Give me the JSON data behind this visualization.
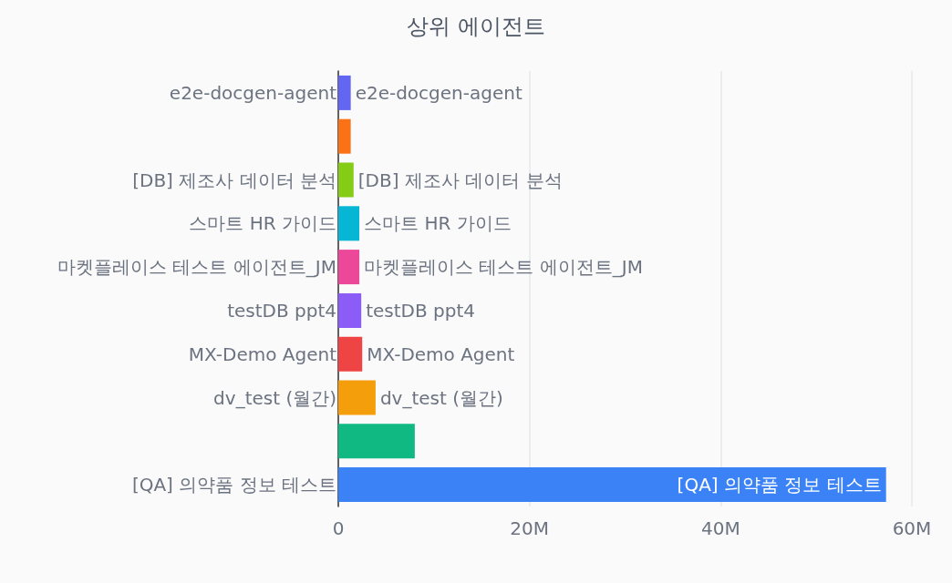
{
  "chart_data": {
    "type": "bar",
    "title": "상위 에이전트",
    "orientation": "horizontal",
    "categories": [
      "e2e-docgen-agent",
      null,
      "[DB] 제조사 데이터 분석",
      "스마트 HR 가이드",
      "마켓플레이스 테스트 에이전트_JM",
      "testDB ppt4",
      "MX-Demo Agent",
      "dv_test (월간)",
      null,
      "[QA] 의약품 정보 테스트"
    ],
    "values": [
      1.3,
      1.3,
      1.6,
      2.2,
      2.2,
      2.4,
      2.5,
      3.9,
      8.0,
      57.3
    ],
    "colors": [
      "#6366f1",
      "#f97316",
      "#84cc16",
      "#06b6d4",
      "#ec4899",
      "#8b5cf6",
      "#ef4444",
      "#f59e0b",
      "#10b981",
      "#3b82f6"
    ],
    "value_labels": [
      "e2e-docgen-agent",
      null,
      "[DB] 제조사 데이터 분석",
      "스마트 HR 가이드",
      "마켓플레이스 테스트 에이전트_JM",
      "testDB ppt4",
      "MX-Demo Agent",
      "dv_test (월간)",
      null,
      "[QA] 의약품 정보 테스트"
    ],
    "xlim": [
      0,
      60
    ],
    "xticks": [
      0,
      {
        "value": 20,
        "label": "20M"
      },
      {
        "value": 40,
        "label": "40M"
      },
      {
        "value": 60,
        "label": "60M"
      }
    ],
    "grid": "x"
  }
}
